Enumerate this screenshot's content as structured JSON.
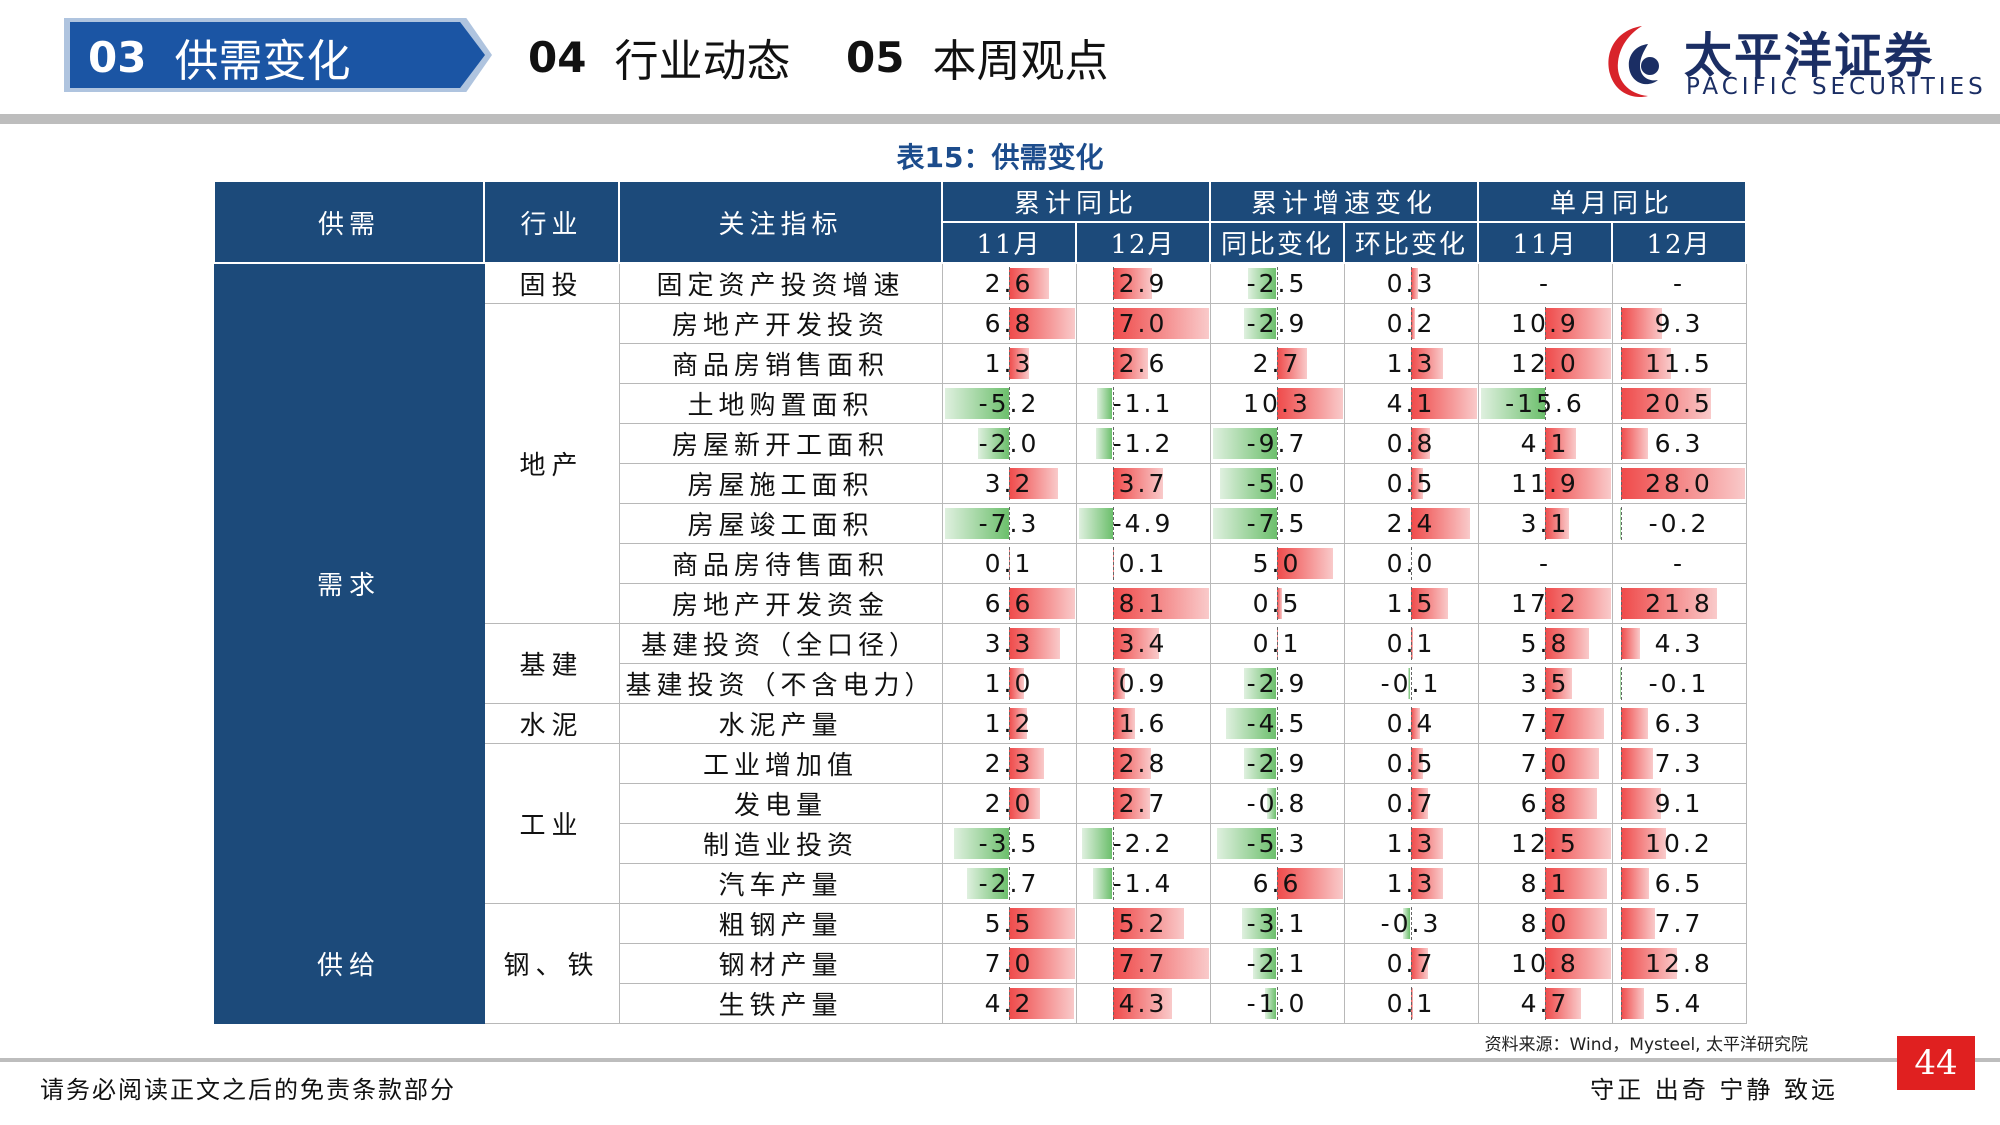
{
  "nav": {
    "items": [
      {
        "num": "03",
        "label": "供需变化",
        "active": true
      },
      {
        "num": "04",
        "label": "行业动态",
        "active": false
      },
      {
        "num": "05",
        "label": "本周观点",
        "active": false
      }
    ]
  },
  "logo": {
    "cn": "太平洋证券",
    "en": "PACIFIC SECURITIES"
  },
  "table_title": "表15：供需变化",
  "headers": {
    "group": "供需",
    "industry": "行业",
    "indicator": "关注指标",
    "cum_yoy": "累计同比",
    "cum_growth_change": "累计增速变化",
    "monthly_yoy": "单月同比",
    "sub": [
      "11月",
      "12月",
      "同比变化",
      "环比变化",
      "11月",
      "12月"
    ]
  },
  "groups": [
    {
      "label": "需求",
      "rows": 16
    },
    {
      "label": "供给",
      "rows": 3
    }
  ],
  "industries": [
    {
      "label": "固投",
      "rows": 1
    },
    {
      "label": "地产",
      "rows": 8
    },
    {
      "label": "基建",
      "rows": 2
    },
    {
      "label": "水泥",
      "rows": 1
    },
    {
      "label": "工业",
      "rows": 4
    },
    {
      "label": "钢、铁",
      "rows": 3
    }
  ],
  "rows": [
    {
      "indicator": "固定资产投资增速",
      "values": [
        "2.6",
        "2.9",
        "-2.5",
        "0.3",
        "-",
        "-"
      ]
    },
    {
      "indicator": "房地产开发投资",
      "values": [
        "6.8",
        "7.0",
        "-2.9",
        "0.2",
        "10.9",
        "9.3"
      ]
    },
    {
      "indicator": "商品房销售面积",
      "values": [
        "1.3",
        "2.6",
        "2.7",
        "1.3",
        "12.0",
        "11.5"
      ]
    },
    {
      "indicator": "土地购置面积",
      "values": [
        "-5.2",
        "-1.1",
        "10.3",
        "4.1",
        "-15.6",
        "20.5"
      ]
    },
    {
      "indicator": "房屋新开工面积",
      "values": [
        "-2.0",
        "-1.2",
        "-9.7",
        "0.8",
        "4.1",
        "6.3"
      ]
    },
    {
      "indicator": "房屋施工面积",
      "values": [
        "3.2",
        "3.7",
        "-5.0",
        "0.5",
        "11.9",
        "28.0"
      ]
    },
    {
      "indicator": "房屋竣工面积",
      "values": [
        "-7.3",
        "-4.9",
        "-7.5",
        "2.4",
        "3.1",
        "-0.2"
      ]
    },
    {
      "indicator": "商品房待售面积",
      "values": [
        "0.1",
        "0.1",
        "5.0",
        "0.0",
        "-",
        "-"
      ]
    },
    {
      "indicator": "房地产开发资金",
      "values": [
        "6.6",
        "8.1",
        "0.5",
        "1.5",
        "17.2",
        "21.8"
      ]
    },
    {
      "indicator": "基建投资（全口径）",
      "values": [
        "3.3",
        "3.4",
        "0.1",
        "0.1",
        "5.8",
        "4.3"
      ]
    },
    {
      "indicator": "基建投资（不含电力）",
      "values": [
        "1.0",
        "0.9",
        "-2.9",
        "-0.1",
        "3.5",
        "-0.1"
      ]
    },
    {
      "indicator": "水泥产量",
      "values": [
        "1.2",
        "1.6",
        "-4.5",
        "0.4",
        "7.7",
        "6.3"
      ]
    },
    {
      "indicator": "工业增加值",
      "values": [
        "2.3",
        "2.8",
        "-2.9",
        "0.5",
        "7.0",
        "7.3"
      ]
    },
    {
      "indicator": "发电量",
      "values": [
        "2.0",
        "2.7",
        "-0.8",
        "0.7",
        "6.8",
        "9.1"
      ]
    },
    {
      "indicator": "制造业投资",
      "values": [
        "-3.5",
        "-2.2",
        "-5.3",
        "1.3",
        "12.5",
        "10.2"
      ]
    },
    {
      "indicator": "汽车产量",
      "values": [
        "-2.7",
        "-1.4",
        "6.6",
        "1.3",
        "8.1",
        "6.5"
      ]
    },
    {
      "indicator": "粗钢产量",
      "values": [
        "5.5",
        "5.2",
        "-3.1",
        "-0.3",
        "8.0",
        "7.7"
      ]
    },
    {
      "indicator": "钢材产量",
      "values": [
        "7.0",
        "7.7",
        "-2.1",
        "0.7",
        "10.8",
        "12.8"
      ]
    },
    {
      "indicator": "生铁产量",
      "values": [
        "4.2",
        "4.3",
        "-1.0",
        "0.1",
        "4.7",
        "5.4"
      ]
    }
  ],
  "source": "资料来源：Wind，Mysteel, 太平洋研究院",
  "footer": {
    "left": "请务必阅读正文之后的免责条款部分",
    "right": "守正 出奇 宁静 致远",
    "page": "44"
  },
  "colors": {
    "nav_blue": "#1b55a4",
    "header_navy": "#1c4a7a",
    "bar_red": "#ef4a4a",
    "bar_green": "#6cbf6c",
    "page_red": "#e02020"
  }
}
